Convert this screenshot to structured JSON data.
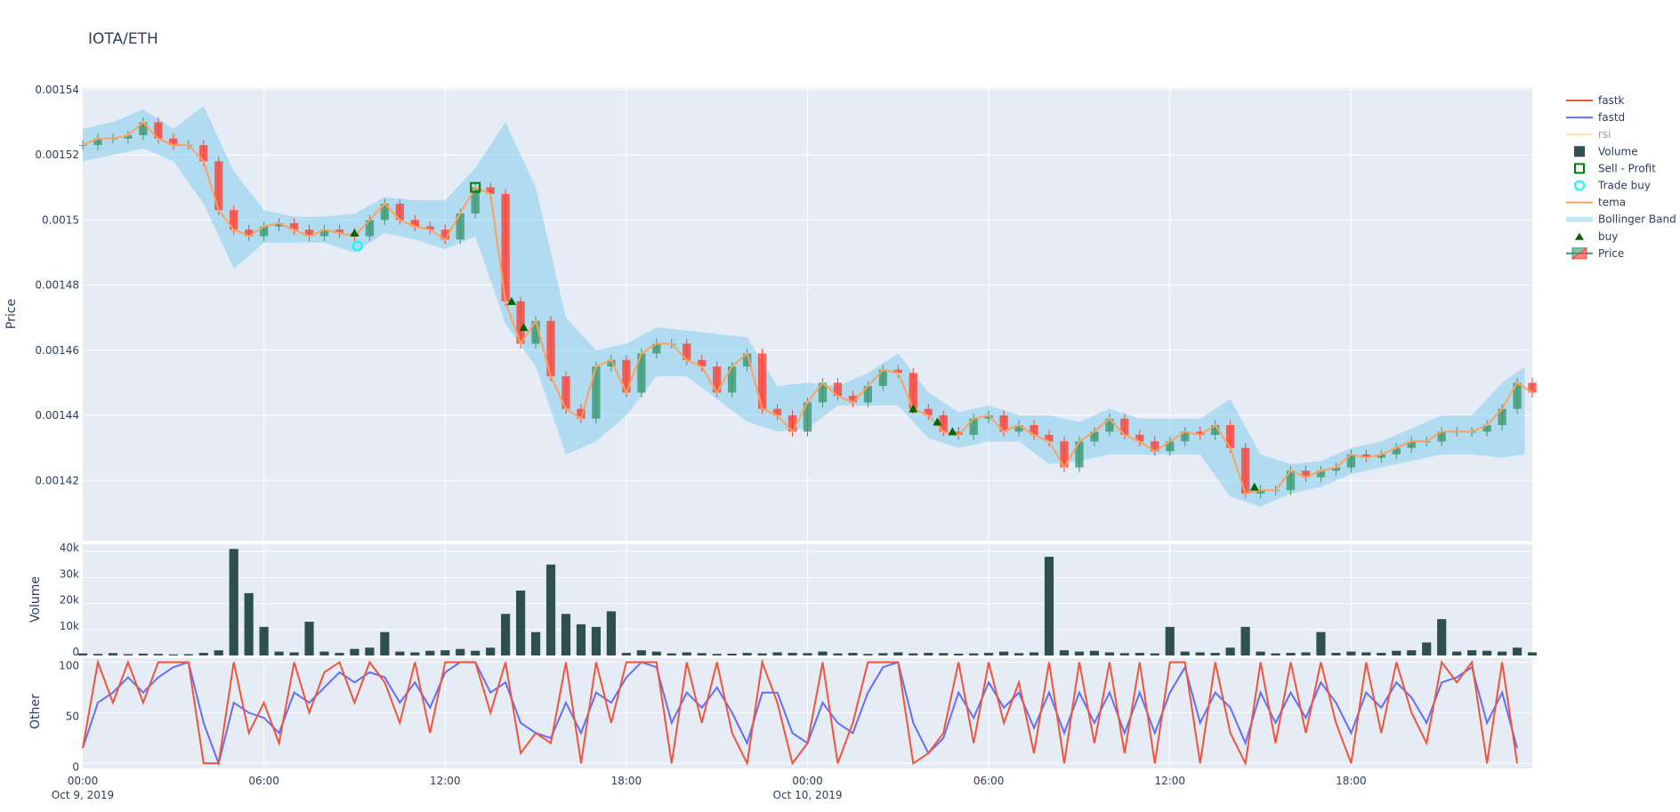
{
  "title": "IOTA/ETH",
  "colors": {
    "background": "#E5ECF6",
    "grid": "#FFFFFF",
    "fastk": "#EF553B",
    "fastd": "#636EFA",
    "rsi": "#FECB52",
    "volume": "#2F4F4F",
    "sell_profit": "#008000",
    "trade_buy": "#00FFFF",
    "tema": "#FFA15A",
    "bollinger": "#87CEEB",
    "buy": "#006400",
    "candle_up": "#3D9970",
    "candle_down": "#FF4136"
  },
  "legend": {
    "placement": "right",
    "items": [
      {
        "label": "fastk",
        "icon": "line-icon"
      },
      {
        "label": "fastd",
        "icon": "line-icon"
      },
      {
        "label": "rsi",
        "icon": "line-icon",
        "hidden": true
      },
      {
        "label": "Volume",
        "icon": "square-icon"
      },
      {
        "label": "Sell - Profit",
        "icon": "square-open-icon"
      },
      {
        "label": "Trade buy",
        "icon": "circle-open-icon"
      },
      {
        "label": "tema",
        "icon": "line-icon"
      },
      {
        "label": "Bollinger Band",
        "icon": "band-icon"
      },
      {
        "label": "buy",
        "icon": "triangle-up-icon"
      },
      {
        "label": "Price",
        "icon": "candlestick-icon"
      }
    ]
  },
  "chart_data": [
    {
      "type": "candlestick",
      "ylabel": "Price",
      "ylim": [
        0.0014015,
        0.0015405
      ],
      "yticks": [
        "0.00154",
        "0.00152",
        "0.0015",
        "0.00148",
        "0.00146",
        "0.00144",
        "0.00142"
      ],
      "ytick_values": [
        0.00154,
        0.00152,
        0.0015,
        0.00148,
        0.00146,
        0.00144,
        0.00142
      ],
      "grid": true,
      "x_hours_interval": 0.5,
      "close": [
        0.001523,
        0.001525,
        0.001525,
        0.001526,
        0.00153,
        0.001525,
        0.001523,
        0.001523,
        0.001518,
        0.001503,
        0.001497,
        0.001495,
        0.001498,
        0.001499,
        0.001497,
        0.001495,
        0.001497,
        0.001496,
        0.001495,
        0.0015,
        0.001505,
        0.0015,
        0.001498,
        0.001497,
        0.001494,
        0.001502,
        0.00151,
        0.001508,
        0.001475,
        0.001462,
        0.001469,
        0.001452,
        0.001442,
        0.001439,
        0.001455,
        0.001457,
        0.001447,
        0.001459,
        0.001462,
        0.001462,
        0.001457,
        0.001455,
        0.001447,
        0.001455,
        0.001459,
        0.001442,
        0.00144,
        0.001435,
        0.001444,
        0.00145,
        0.001446,
        0.001444,
        0.001449,
        0.001454,
        0.001453,
        0.001442,
        0.00144,
        0.001435,
        0.001434,
        0.001439,
        0.00144,
        0.001435,
        0.001437,
        0.001434,
        0.001432,
        0.001424,
        0.001432,
        0.001435,
        0.001439,
        0.001434,
        0.001432,
        0.001429,
        0.001432,
        0.001435,
        0.001434,
        0.001437,
        0.00143,
        0.001416,
        0.001417,
        0.001417,
        0.001423,
        0.001421,
        0.001423,
        0.001424,
        0.001428,
        0.001427,
        0.001428,
        0.00143,
        0.001432,
        0.001432,
        0.001435,
        0.001435,
        0.001435,
        0.001437,
        0.001442,
        0.00145,
        0.001447
      ],
      "bollinger_hourly": {
        "upper": [
          0.001528,
          0.00153,
          0.001534,
          0.001528,
          0.001535,
          0.001515,
          0.001503,
          0.001501,
          0.001501,
          0.001502,
          0.001507,
          0.001506,
          0.001506,
          0.001516,
          0.00153,
          0.00151,
          0.00147,
          0.00146,
          0.001462,
          0.001467,
          0.001466,
          0.001465,
          0.001464,
          0.001449,
          0.00145,
          0.001449,
          0.001453,
          0.001459,
          0.001447,
          0.001441,
          0.001443,
          0.00144,
          0.00144,
          0.001438,
          0.001442,
          0.001439,
          0.001439,
          0.001439,
          0.001445,
          0.001428,
          0.001425,
          0.001426,
          0.00143,
          0.001432,
          0.001436,
          0.00144,
          0.00144,
          0.00145,
          0.001455
        ],
        "lower": [
          0.001518,
          0.00152,
          0.001522,
          0.001518,
          0.001505,
          0.001485,
          0.001493,
          0.001493,
          0.001493,
          0.00149,
          0.001496,
          0.001494,
          0.001491,
          0.001495,
          0.001468,
          0.001455,
          0.001428,
          0.001432,
          0.00144,
          0.001452,
          0.001452,
          0.001445,
          0.001438,
          0.001435,
          0.001436,
          0.001443,
          0.001443,
          0.001443,
          0.001433,
          0.00143,
          0.001432,
          0.001432,
          0.001425,
          0.001426,
          0.001428,
          0.001428,
          0.001428,
          0.001428,
          0.001415,
          0.001412,
          0.001416,
          0.001418,
          0.001422,
          0.001424,
          0.001426,
          0.001428,
          0.001428,
          0.001427,
          0.001428
        ]
      },
      "buy": [
        {
          "hour": 9.0,
          "price": 0.001496
        },
        {
          "hour": 14.2,
          "price": 0.001475
        },
        {
          "hour": 14.6,
          "price": 0.001467
        },
        {
          "hour": 27.5,
          "price": 0.001442
        },
        {
          "hour": 28.3,
          "price": 0.001438
        },
        {
          "hour": 28.8,
          "price": 0.001435
        },
        {
          "hour": 38.8,
          "price": 0.001418
        }
      ],
      "trade_buy": [
        {
          "hour": 9.1,
          "price": 0.001492
        }
      ],
      "sell_profit": [
        {
          "hour": 13.0,
          "price": 0.00151
        }
      ]
    },
    {
      "type": "bar",
      "ylabel": "Volume",
      "ylim": [
        0,
        42800
      ],
      "yticks": [
        "0",
        "10k",
        "20k",
        "30k",
        "40k"
      ],
      "ytick_values": [
        0,
        10000,
        20000,
        30000,
        40000
      ],
      "x_hours_interval": 0.5,
      "values": [
        800,
        600,
        900,
        500,
        700,
        600,
        400,
        500,
        1000,
        2000,
        41000,
        24000,
        11000,
        1500,
        1200,
        13000,
        1500,
        1000,
        2500,
        3000,
        9000,
        1500,
        1200,
        1800,
        2000,
        2500,
        1800,
        3000,
        16000,
        25000,
        9000,
        35000,
        16000,
        12000,
        11000,
        17000,
        1000,
        2000,
        1500,
        800,
        1200,
        900,
        600,
        700,
        1000,
        800,
        1200,
        1000,
        900,
        1500,
        800,
        1000,
        600,
        900,
        1200,
        800,
        1000,
        900,
        700,
        800,
        1000,
        1500,
        900,
        1200,
        38000,
        2000,
        1500,
        1800,
        1200,
        900,
        1000,
        800,
        11000,
        1500,
        1200,
        1000,
        3000,
        11000,
        1500,
        800,
        1000,
        1200,
        9000,
        1000,
        1500,
        1200,
        1000,
        1800,
        2000,
        5000,
        14000,
        1500,
        2000,
        1800,
        1500,
        3000,
        1200
      ]
    },
    {
      "type": "line",
      "ylabel": "Other",
      "ylim": [
        -5,
        104
      ],
      "yticks": [
        "0",
        "50",
        "100"
      ],
      "ytick_values": [
        0,
        50,
        100
      ],
      "x_hours_interval": 0.5,
      "xticks": [
        "00:00",
        "06:00",
        "12:00",
        "18:00",
        "00:00",
        "06:00",
        "12:00",
        "18:00"
      ],
      "xtick_hours": [
        0,
        6,
        12,
        18,
        24,
        30,
        36,
        42
      ],
      "xtick_dates": [
        "Oct 9, 2019",
        "",
        "",
        "",
        "Oct 10, 2019",
        "",
        "",
        ""
      ],
      "series": [
        {
          "name": "fastk",
          "values": [
            15,
            100,
            60,
            100,
            60,
            100,
            100,
            100,
            0,
            0,
            100,
            30,
            60,
            20,
            100,
            50,
            90,
            100,
            60,
            100,
            80,
            40,
            100,
            30,
            100,
            100,
            100,
            50,
            100,
            10,
            30,
            20,
            100,
            0,
            100,
            40,
            100,
            100,
            100,
            0,
            100,
            40,
            100,
            30,
            0,
            100,
            60,
            0,
            20,
            100,
            0,
            40,
            100,
            100,
            100,
            0,
            10,
            30,
            100,
            20,
            100,
            40,
            80,
            10,
            100,
            0,
            100,
            20,
            100,
            10,
            100,
            0,
            100,
            100,
            0,
            100,
            30,
            0,
            100,
            20,
            100,
            30,
            100,
            40,
            0,
            100,
            30,
            100,
            50,
            20,
            100,
            80,
            100,
            0,
            100,
            0
          ]
        },
        {
          "name": "fastd",
          "values": [
            15,
            60,
            70,
            85,
            70,
            85,
            95,
            100,
            40,
            0,
            60,
            50,
            45,
            30,
            70,
            60,
            75,
            90,
            80,
            90,
            85,
            60,
            80,
            55,
            90,
            100,
            100,
            70,
            80,
            40,
            30,
            25,
            60,
            30,
            70,
            60,
            85,
            100,
            95,
            40,
            70,
            55,
            75,
            50,
            20,
            70,
            70,
            30,
            20,
            60,
            40,
            30,
            70,
            95,
            100,
            40,
            10,
            25,
            70,
            45,
            80,
            55,
            70,
            35,
            70,
            30,
            70,
            40,
            70,
            30,
            70,
            30,
            70,
            95,
            40,
            70,
            55,
            20,
            70,
            40,
            70,
            45,
            80,
            60,
            30,
            70,
            55,
            80,
            65,
            40,
            80,
            85,
            95,
            40,
            70,
            15
          ]
        }
      ]
    }
  ]
}
